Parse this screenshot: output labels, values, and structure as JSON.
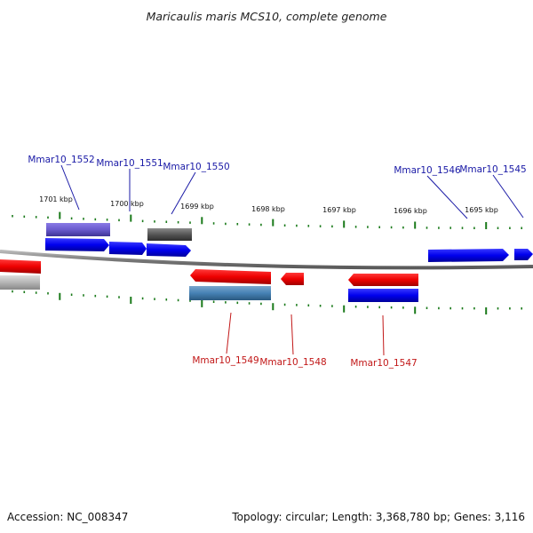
{
  "title": "Maricaulis maris MCS10, complete genome",
  "footer": {
    "accession": "Accession: NC_008347",
    "summary": "Topology: circular; Length: 3,368,780 bp; Genes: 3,116"
  },
  "colors": {
    "forward_label": "#1a1aa6",
    "reverse_label": "#c21818",
    "forward_gene": "#0000ee",
    "reverse_gene": "#ee0000",
    "tick": "#1a7a1a",
    "backbone": "#8a8a8a"
  },
  "scale": {
    "ticks": [
      "1701 kbp",
      "1700 kbp",
      "1699 kbp",
      "1698 kbp",
      "1697 kbp",
      "1696 kbp",
      "1695 kbp"
    ]
  },
  "genes": {
    "forward_labels": [
      "Mmar10_1552",
      "Mmar10_1551",
      "Mmar10_1550",
      "Mmar10_1546",
      "Mmar10_1545"
    ],
    "reverse_labels": [
      "Mmar10_1549",
      "Mmar10_1548",
      "Mmar10_1547"
    ]
  }
}
